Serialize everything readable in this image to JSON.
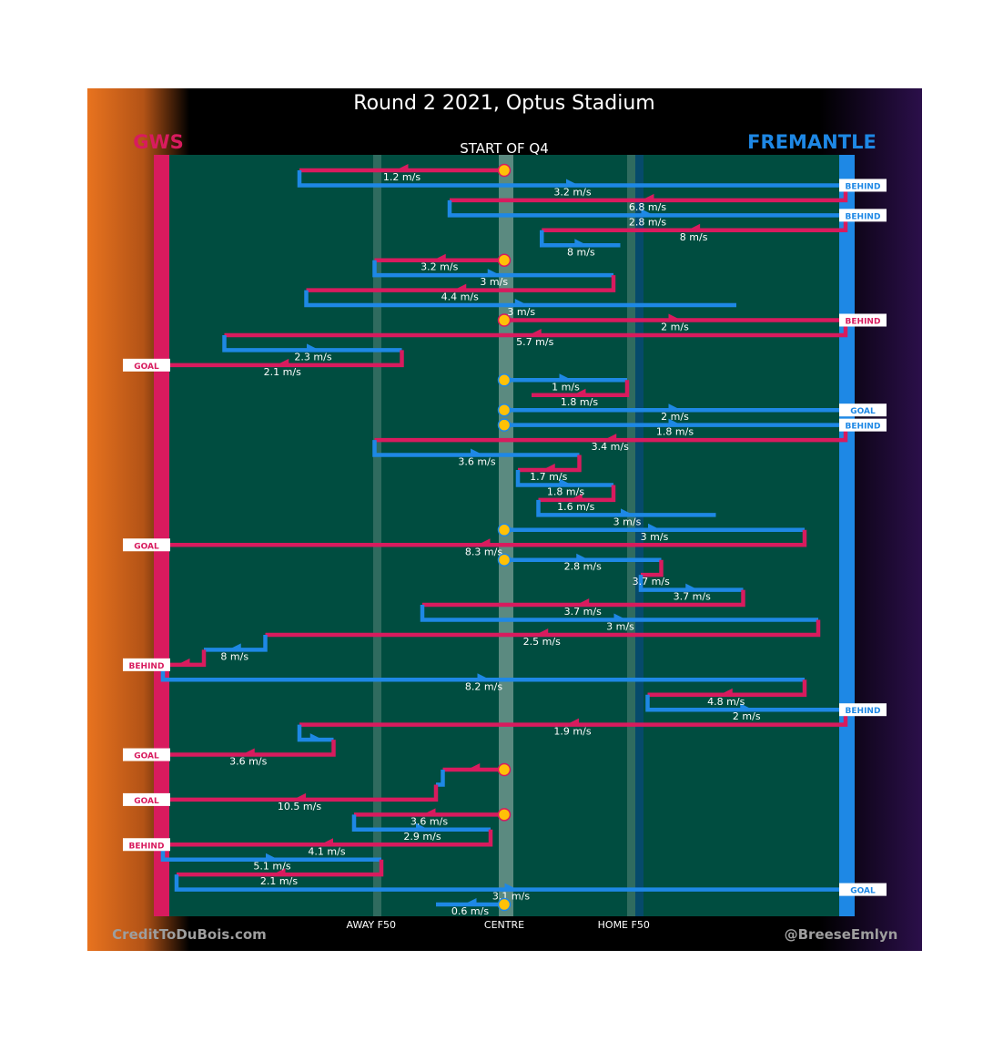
{
  "title": "Round 2 2021, Optus Stadium",
  "subtitle": "START OF Q4",
  "teams": {
    "home": "FREMANTLE",
    "away": "GWS"
  },
  "colors": {
    "gws": "#d81b5e",
    "fremantle": "#1e88e5",
    "field": "#004d40",
    "possession_marker": "#ffc107",
    "left_bg_start": "#e8731f",
    "right_bg": "#2b0f4a"
  },
  "zone_labels": [
    "AWAY F50",
    "CENTRE",
    "HOME F50"
  ],
  "footer": {
    "left": "CreditToDuBois.com",
    "right": "@BreeseEmlyn"
  },
  "chart_data": {
    "type": "path",
    "x_scale": "ground position, away goal (0) to home goal (100)",
    "zones": [
      {
        "label": "AWAY F50",
        "x": 30.5
      },
      {
        "label": "CENTRE",
        "x": 50
      },
      {
        "label": "HOME F50",
        "x": 67.5
      }
    ],
    "chains": [
      {
        "team": "GWS",
        "start_from_centre": true,
        "moves": [
          {
            "x": 20,
            "speed": "1.2 m/s"
          }
        ]
      },
      {
        "team": "FREMANTLE",
        "moves": [
          {
            "x": 100,
            "speed": "3.2 m/s"
          }
        ],
        "result": "BEHIND"
      },
      {
        "team": "GWS",
        "moves": [
          {
            "x": 42,
            "speed": "6.8 m/s"
          }
        ]
      },
      {
        "team": "FREMANTLE",
        "moves": [
          {
            "x": 100,
            "speed": "2.8 m/s"
          }
        ],
        "result": "BEHIND"
      },
      {
        "team": "GWS",
        "moves": [
          {
            "x": 55.5,
            "speed": "8 m/s"
          }
        ]
      },
      {
        "team": "FREMANTLE",
        "moves": [
          {
            "x": 67,
            "speed": "8 m/s"
          }
        ]
      },
      {
        "team": "GWS",
        "start_from_centre": true,
        "moves": [
          {
            "x": 31,
            "speed": "3.2 m/s"
          }
        ]
      },
      {
        "team": "FREMANTLE",
        "moves": [
          {
            "x": 66,
            "speed": "3 m/s"
          }
        ]
      },
      {
        "team": "GWS",
        "moves": [
          {
            "x": 21,
            "speed": "4.4 m/s"
          }
        ]
      },
      {
        "team": "FREMANTLE",
        "moves": [
          {
            "x": 84,
            "speed": "3 m/s"
          }
        ]
      },
      {
        "team": "GWS",
        "start_from_centre": true,
        "moves": [
          {
            "x": 100,
            "speed": "2 m/s"
          }
        ],
        "result": "BEHIND"
      },
      {
        "team": "GWS",
        "moves": [
          {
            "x": 9,
            "speed": "5.7 m/s"
          }
        ]
      },
      {
        "team": "FREMANTLE",
        "moves": [
          {
            "x": 35,
            "speed": "2.3 m/s"
          }
        ]
      },
      {
        "team": "GWS",
        "moves": [
          {
            "x": 0,
            "speed": "2.1 m/s"
          }
        ],
        "result": "GOAL"
      },
      {
        "team": "FREMANTLE",
        "start_from_centre": true,
        "moves": [
          {
            "x": 68,
            "speed": "1 m/s"
          }
        ]
      },
      {
        "team": "GWS",
        "moves": [
          {
            "x": 54,
            "speed": "1.8 m/s"
          }
        ]
      },
      {
        "team": "FREMANTLE",
        "start_from_centre": true,
        "moves": [
          {
            "x": 100,
            "speed": "2 m/s"
          }
        ],
        "result": "GOAL"
      },
      {
        "team": "FREMANTLE",
        "start_from_centre": true,
        "moves": [
          {
            "x": 100,
            "speed": "1.8 m/s"
          }
        ],
        "result": "BEHIND"
      },
      {
        "team": "GWS",
        "moves": [
          {
            "x": 31,
            "speed": "3.4 m/s"
          }
        ]
      },
      {
        "team": "FREMANTLE",
        "moves": [
          {
            "x": 61,
            "speed": "3.6 m/s"
          }
        ]
      },
      {
        "team": "GWS",
        "moves": [
          {
            "x": 52,
            "speed": "1.7 m/s"
          }
        ]
      },
      {
        "team": "FREMANTLE",
        "moves": [
          {
            "x": 66,
            "speed": "1.8 m/s"
          }
        ]
      },
      {
        "team": "GWS",
        "moves": [
          {
            "x": 55,
            "speed": "1.6 m/s"
          }
        ]
      },
      {
        "team": "FREMANTLE",
        "moves": [
          {
            "x": 81,
            "speed": "3 m/s"
          }
        ]
      },
      {
        "team": "FREMANTLE",
        "start_from_centre": true,
        "moves": [
          {
            "x": 94,
            "speed": "3 m/s"
          }
        ]
      },
      {
        "team": "GWS",
        "moves": [
          {
            "x": 0,
            "speed": "8.3 m/s"
          }
        ],
        "result": "GOAL"
      },
      {
        "team": "FREMANTLE",
        "start_from_centre": true,
        "moves": [
          {
            "x": 73,
            "speed": "2.8 m/s"
          }
        ]
      },
      {
        "team": "GWS",
        "moves": [
          {
            "x": 70,
            "speed": "3.7 m/s"
          }
        ]
      },
      {
        "team": "FREMANTLE",
        "moves": [
          {
            "x": 85,
            "speed": "3.7 m/s"
          }
        ]
      },
      {
        "team": "GWS",
        "moves": [
          {
            "x": 38,
            "speed": "3.7 m/s"
          }
        ]
      },
      {
        "team": "FREMANTLE",
        "moves": [
          {
            "x": 96,
            "speed": "3 m/s"
          }
        ]
      },
      {
        "team": "GWS",
        "moves": [
          {
            "x": 15,
            "speed": "2.5 m/s"
          }
        ]
      },
      {
        "team": "FREMANTLE",
        "moves": [
          {
            "x": 6,
            "speed": "8 m/s"
          }
        ]
      },
      {
        "team": "GWS",
        "moves": [
          {
            "x": 0,
            "speed": ""
          }
        ],
        "result": "BEHIND"
      },
      {
        "team": "FREMANTLE",
        "moves": [
          {
            "x": 94,
            "speed": "8.2 m/s"
          }
        ]
      },
      {
        "team": "GWS",
        "moves": [
          {
            "x": 71,
            "speed": "4.8 m/s"
          }
        ]
      },
      {
        "team": "FREMANTLE",
        "moves": [
          {
            "x": 100,
            "speed": "2 m/s"
          }
        ],
        "result": "BEHIND"
      },
      {
        "team": "GWS",
        "moves": [
          {
            "x": 20,
            "speed": "1.9 m/s"
          }
        ]
      },
      {
        "team": "FREMANTLE",
        "moves": [
          {
            "x": 25,
            "speed": ""
          }
        ]
      },
      {
        "team": "GWS",
        "moves": [
          {
            "x": 0,
            "speed": "3.6 m/s"
          }
        ],
        "result": "GOAL"
      },
      {
        "team": "GWS",
        "start_from_centre": true,
        "moves": [
          {
            "x": 41,
            "speed": ""
          }
        ]
      },
      {
        "team": "FREMANTLE",
        "moves": [
          {
            "x": 40,
            "speed": ""
          }
        ]
      },
      {
        "team": "GWS",
        "moves": [
          {
            "x": 0,
            "speed": "10.5 m/s"
          }
        ],
        "result": "GOAL"
      },
      {
        "team": "GWS",
        "start_from_centre": true,
        "moves": [
          {
            "x": 28,
            "speed": "3.6 m/s"
          }
        ]
      },
      {
        "team": "FREMANTLE",
        "moves": [
          {
            "x": 48,
            "speed": "2.9 m/s"
          }
        ]
      },
      {
        "team": "GWS",
        "moves": [
          {
            "x": 0,
            "speed": "4.1 m/s"
          }
        ],
        "result": "BEHIND"
      },
      {
        "team": "FREMANTLE",
        "moves": [
          {
            "x": 32,
            "speed": "5.1 m/s"
          }
        ]
      },
      {
        "team": "GWS",
        "moves": [
          {
            "x": 2,
            "speed": "2.1 m/s"
          }
        ]
      },
      {
        "team": "FREMANTLE",
        "moves": [
          {
            "x": 100,
            "speed": "3.1 m/s"
          }
        ],
        "result": "GOAL"
      },
      {
        "team": "FREMANTLE",
        "start_from_centre": true,
        "moves": [
          {
            "x": 40,
            "speed": "0.6 m/s"
          }
        ]
      }
    ]
  }
}
